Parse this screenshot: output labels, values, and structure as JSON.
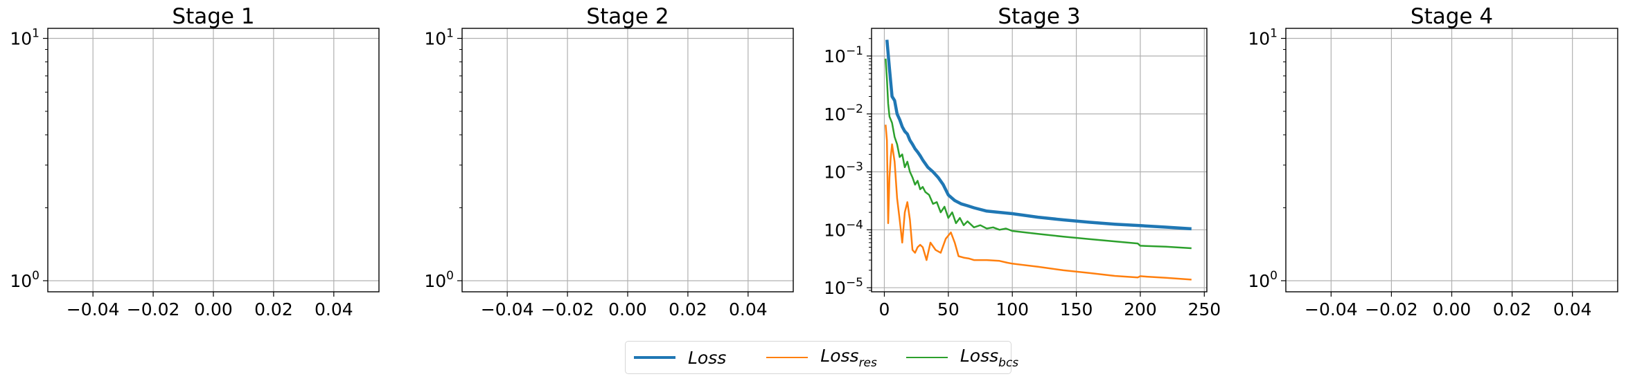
{
  "chart_data": [
    {
      "type": "line",
      "title": "Stage 1",
      "yscale": "log",
      "ylim": [
        0.9,
        11
      ],
      "xlim": [
        -0.055,
        0.055
      ],
      "xticks": [
        "−0.04",
        "−0.02",
        "0.00",
        "0.02",
        "0.04"
      ],
      "yticks": [
        "10",
        "10"
      ],
      "ytick_exponents": [
        "1",
        "0"
      ],
      "grid": true,
      "series": []
    },
    {
      "type": "line",
      "title": "Stage 2",
      "yscale": "log",
      "ylim": [
        0.9,
        11
      ],
      "xlim": [
        -0.055,
        0.055
      ],
      "xticks": [
        "−0.04",
        "−0.02",
        "0.00",
        "0.02",
        "0.04"
      ],
      "yticks": [
        "10",
        "10"
      ],
      "ytick_exponents": [
        "1",
        "0"
      ],
      "grid": true,
      "series": []
    },
    {
      "type": "line",
      "title": "Stage 3",
      "yscale": "log",
      "ylim": [
        8.5e-06,
        0.3
      ],
      "xlim": [
        -10,
        252
      ],
      "xticks": [
        "0",
        "50",
        "100",
        "150",
        "200",
        "250"
      ],
      "yticks": [
        "10",
        "10",
        "10",
        "10",
        "10"
      ],
      "ytick_exponents": [
        "−1",
        "−2",
        "−3",
        "−4",
        "−5"
      ],
      "grid": true,
      "series": [
        {
          "name": "Loss",
          "color": "#1f77b4",
          "x": [
            2,
            4,
            6,
            8,
            10,
            12,
            14,
            16,
            18,
            20,
            22,
            24,
            26,
            28,
            30,
            34,
            38,
            42,
            46,
            50,
            55,
            60,
            65,
            70,
            80,
            90,
            100,
            120,
            140,
            160,
            180,
            200,
            220,
            240
          ],
          "y": [
            0.19,
            0.06,
            0.02,
            0.017,
            0.01,
            0.008,
            0.006,
            0.005,
            0.0045,
            0.0035,
            0.003,
            0.0025,
            0.0022,
            0.0019,
            0.0016,
            0.0012,
            0.001,
            0.0008,
            0.0006,
            0.0004,
            0.00032,
            0.00028,
            0.00026,
            0.00024,
            0.00021,
            0.0002,
            0.00019,
            0.000165,
            0.000148,
            0.000135,
            0.000125,
            0.000118,
            0.000111,
            0.000104
          ]
        },
        {
          "name": "Loss_res",
          "color": "#ff7f0e",
          "x": [
            1,
            2,
            3,
            4,
            5,
            6,
            8,
            10,
            12,
            14,
            16,
            18,
            20,
            22,
            24,
            26,
            28,
            30,
            33,
            36,
            40,
            44,
            48,
            52,
            55,
            58,
            62,
            66,
            70,
            80,
            90,
            96,
            100,
            120,
            140,
            160,
            180,
            198,
            200,
            205,
            220,
            240
          ],
          "y": [
            0.0065,
            0.0035,
            0.00013,
            0.0008,
            0.0018,
            0.003,
            0.0015,
            0.00035,
            0.00015,
            6e-05,
            0.0002,
            0.0003,
            0.00015,
            4.5e-05,
            4e-05,
            5e-05,
            5.5e-05,
            5e-05,
            3e-05,
            6e-05,
            4.5e-05,
            4e-05,
            7e-05,
            9e-05,
            6e-05,
            3.5e-05,
            3.3e-05,
            3.2e-05,
            3e-05,
            3e-05,
            2.9e-05,
            2.7e-05,
            2.6e-05,
            2.3e-05,
            2e-05,
            1.8e-05,
            1.6e-05,
            1.5e-05,
            1.58e-05,
            1.55e-05,
            1.48e-05,
            1.38e-05
          ]
        },
        {
          "name": "Loss_bcs",
          "color": "#2ca02c",
          "x": [
            1,
            2,
            3,
            4,
            6,
            8,
            10,
            12,
            14,
            16,
            18,
            20,
            22,
            24,
            26,
            28,
            30,
            32,
            35,
            38,
            41,
            44,
            47,
            50,
            53,
            56,
            59,
            62,
            65,
            70,
            75,
            80,
            85,
            90,
            95,
            100,
            120,
            140,
            160,
            180,
            198,
            200,
            220,
            240
          ],
          "y": [
            0.09,
            0.04,
            0.015,
            0.009,
            0.007,
            0.004,
            0.003,
            0.0018,
            0.002,
            0.0012,
            0.0015,
            0.001,
            0.0008,
            0.0006,
            0.0007,
            0.0005,
            0.00055,
            0.00045,
            0.0004,
            0.00028,
            0.0003,
            0.0002,
            0.00025,
            0.00016,
            0.0002,
            0.00013,
            0.00016,
            0.00012,
            0.00014,
            0.00011,
            0.00012,
            0.000105,
            0.00011,
            0.0001,
            0.000105,
            9.55e-05,
            8.5e-05,
            7.6e-05,
            6.9e-05,
            6.3e-05,
            5.8e-05,
            5.3e-05,
            5.1e-05,
            4.8e-05
          ]
        }
      ]
    },
    {
      "type": "line",
      "title": "Stage 4",
      "yscale": "log",
      "ylim": [
        0.9,
        11
      ],
      "xlim": [
        -0.055,
        0.055
      ],
      "xticks": [
        "−0.04",
        "−0.02",
        "0.00",
        "0.02",
        "0.04"
      ],
      "yticks": [
        "10",
        "10"
      ],
      "ytick_exponents": [
        "1",
        "0"
      ],
      "grid": true,
      "series": []
    }
  ],
  "legend": {
    "placement": "bottom-center",
    "items": [
      {
        "label": "Loss",
        "sub": "",
        "color": "#1f77b4",
        "width": 4.5
      },
      {
        "label": "Loss",
        "sub": "res",
        "color": "#ff7f0e",
        "width": 2.5
      },
      {
        "label": "Loss",
        "sub": "bcs",
        "color": "#2ca02c",
        "width": 2.5
      }
    ]
  }
}
